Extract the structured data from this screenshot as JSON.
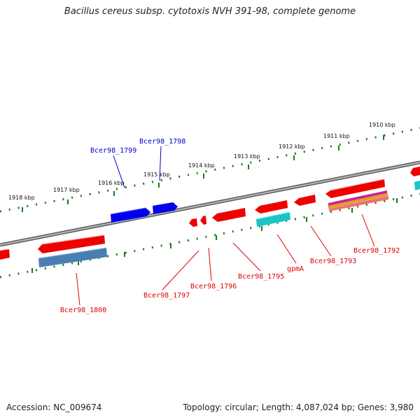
{
  "title": "Bacillus cereus subsp. cytotoxis NVH 391-98, complete genome",
  "footer": {
    "accession": "Accession: NC_009674",
    "summary": "Topology: circular; Length: 4,087,024 bp; Genes: 3,980"
  },
  "colors": {
    "forward_gene": "#0000ee",
    "reverse_gene": "#ee0000",
    "backbone": "#7a7a7a",
    "tick": "#1a7a1a",
    "cds_cyan": "#19c6c6",
    "cds_steelblue": "#4a7fb5"
  },
  "kbp_labels": [
    "1918 kbp",
    "1917 kbp",
    "1916 kbp",
    "1915 kbp",
    "1914 kbp",
    "1913 kbp",
    "1912 kbp",
    "1911 kbp",
    "1910 kbp"
  ],
  "forward_gene_labels": [
    "Bcer98_1799",
    "Bcer98_1798"
  ],
  "reverse_gene_labels": [
    "Bcer98_1800",
    "Bcer98_1797",
    "Bcer98_1796",
    "Bcer98_1795",
    "gpmA",
    "Bcer98_1793",
    "Bcer98_1792"
  ]
}
